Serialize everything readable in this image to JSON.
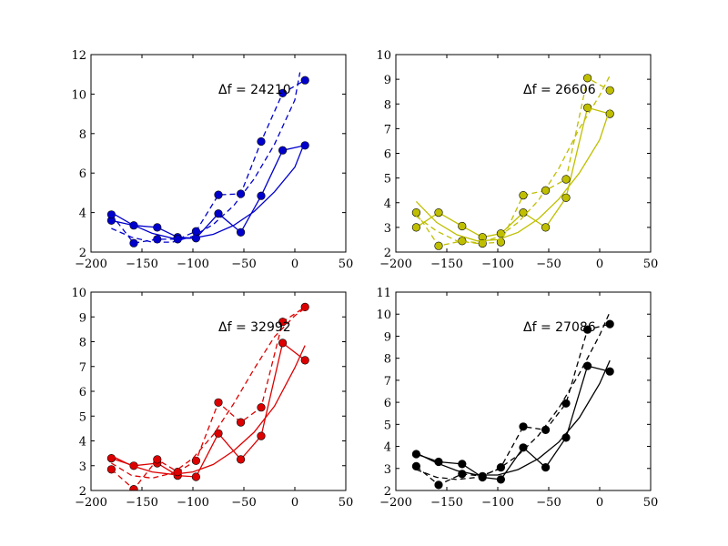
{
  "chart_data": [
    {
      "type": "line",
      "color": "#0000cc",
      "annotation": "Δf = 24210",
      "xlim": [
        -200,
        50
      ],
      "ylim": [
        2,
        12
      ],
      "xticks": [
        -200,
        -150,
        -100,
        -50,
        0,
        50
      ],
      "yticks": [
        2,
        4,
        6,
        8,
        10,
        12
      ],
      "series": [
        {
          "style": "solid-markers",
          "x": [
            -180,
            -158,
            -135,
            -115,
            -97,
            -75,
            -53,
            -33,
            -12,
            10
          ],
          "y": [
            3.6,
            3.35,
            3.25,
            2.75,
            2.7,
            3.95,
            3.0,
            4.85,
            7.15,
            7.4
          ]
        },
        {
          "style": "dashed-markers",
          "x": [
            -180,
            -158,
            -135,
            -115,
            -97,
            -75,
            -53,
            -33,
            -12,
            10
          ],
          "y": [
            3.9,
            2.45,
            2.65,
            2.65,
            3.05,
            4.9,
            4.95,
            7.6,
            10.05,
            10.7
          ]
        },
        {
          "style": "solid",
          "x": [
            -180,
            -160,
            -140,
            -120,
            -100,
            -80,
            -60,
            -40,
            -20,
            0,
            10
          ],
          "y": [
            4.0,
            3.4,
            2.95,
            2.7,
            2.7,
            2.9,
            3.35,
            4.05,
            5.05,
            6.3,
            7.6
          ]
        },
        {
          "style": "dashed",
          "x": [
            -180,
            -160,
            -140,
            -120,
            -100,
            -80,
            -60,
            -40,
            -20,
            0,
            5
          ],
          "y": [
            3.2,
            2.75,
            2.5,
            2.5,
            2.8,
            3.4,
            4.35,
            5.7,
            7.45,
            9.7,
            11.1
          ]
        }
      ]
    },
    {
      "type": "line",
      "color": "#bfbf00",
      "annotation": "Δf = 26606",
      "xlim": [
        -200,
        50
      ],
      "ylim": [
        2,
        10
      ],
      "xticks": [
        -200,
        -150,
        -100,
        -50,
        0,
        50
      ],
      "yticks": [
        2,
        3,
        4,
        5,
        6,
        7,
        8,
        9,
        10
      ],
      "series": [
        {
          "style": "solid-markers",
          "x": [
            -180,
            -158,
            -135,
            -115,
            -97,
            -75,
            -53,
            -33,
            -12,
            10
          ],
          "y": [
            3.0,
            3.6,
            3.05,
            2.6,
            2.75,
            3.6,
            3.0,
            4.2,
            7.85,
            7.6
          ]
        },
        {
          "style": "dashed-markers",
          "x": [
            -180,
            -158,
            -135,
            -115,
            -97,
            -75,
            -53,
            -33,
            -12,
            10
          ],
          "y": [
            3.6,
            2.25,
            2.45,
            2.35,
            2.4,
            4.3,
            4.5,
            4.95,
            9.05,
            8.55
          ]
        },
        {
          "style": "solid",
          "x": [
            -180,
            -160,
            -140,
            -120,
            -100,
            -80,
            -60,
            -40,
            -20,
            0,
            10
          ],
          "y": [
            4.05,
            3.2,
            2.7,
            2.45,
            2.5,
            2.8,
            3.35,
            4.15,
            5.2,
            6.55,
            7.8
          ]
        },
        {
          "style": "dashed",
          "x": [
            -180,
            -160,
            -140,
            -120,
            -100,
            -80,
            -60,
            -40,
            -20,
            0,
            10
          ],
          "y": [
            3.45,
            2.85,
            2.45,
            2.35,
            2.6,
            3.2,
            4.1,
            5.4,
            7.0,
            8.35,
            9.15
          ]
        }
      ]
    },
    {
      "type": "line",
      "color": "#dd0000",
      "annotation": "Δf = 32992",
      "xlim": [
        -200,
        50
      ],
      "ylim": [
        2,
        10
      ],
      "xticks": [
        -200,
        -150,
        -100,
        -50,
        0,
        50
      ],
      "yticks": [
        2,
        3,
        4,
        5,
        6,
        7,
        8,
        9,
        10
      ],
      "series": [
        {
          "style": "solid-markers",
          "x": [
            -180,
            -158,
            -135,
            -115,
            -97,
            -75,
            -53,
            -33,
            -12,
            10
          ],
          "y": [
            3.3,
            3.0,
            3.1,
            2.6,
            2.55,
            4.3,
            3.25,
            4.2,
            7.95,
            7.25
          ]
        },
        {
          "style": "dashed-markers",
          "x": [
            -180,
            -158,
            -135,
            -115,
            -97,
            -75,
            -53,
            -33,
            -12,
            10
          ],
          "y": [
            2.85,
            2.05,
            3.25,
            2.75,
            3.2,
            5.55,
            4.75,
            5.35,
            8.8,
            9.4
          ]
        },
        {
          "style": "solid",
          "x": [
            -180,
            -160,
            -140,
            -120,
            -100,
            -80,
            -60,
            -40,
            -20,
            0,
            10
          ],
          "y": [
            3.4,
            3.0,
            2.75,
            2.65,
            2.75,
            3.05,
            3.6,
            4.35,
            5.4,
            6.95,
            7.85
          ]
        },
        {
          "style": "dashed",
          "x": [
            -180,
            -160,
            -140,
            -120,
            -100,
            -80,
            -60,
            -40,
            -20,
            0,
            10
          ],
          "y": [
            3.1,
            2.6,
            2.5,
            2.7,
            3.3,
            4.25,
            5.5,
            6.9,
            8.2,
            9.05,
            9.35
          ]
        }
      ]
    },
    {
      "type": "line",
      "color": "#000000",
      "annotation": "Δf = 27086",
      "xlim": [
        -200,
        50
      ],
      "ylim": [
        2,
        11
      ],
      "xticks": [
        -200,
        -150,
        -100,
        -50,
        0,
        50
      ],
      "yticks": [
        2,
        3,
        4,
        5,
        6,
        7,
        8,
        9,
        10,
        11
      ],
      "series": [
        {
          "style": "solid-markers",
          "x": [
            -180,
            -158,
            -135,
            -115,
            -97,
            -75,
            -53,
            -33,
            -12,
            10
          ],
          "y": [
            3.65,
            3.3,
            3.2,
            2.6,
            2.5,
            3.95,
            3.05,
            4.4,
            7.65,
            7.4
          ]
        },
        {
          "style": "dashed-markers",
          "x": [
            -180,
            -158,
            -135,
            -115,
            -97,
            -75,
            -53,
            -33,
            -12,
            10
          ],
          "y": [
            3.1,
            2.25,
            2.75,
            2.65,
            3.05,
            4.9,
            4.75,
            5.95,
            9.3,
            9.55
          ]
        },
        {
          "style": "solid",
          "x": [
            -180,
            -160,
            -140,
            -120,
            -100,
            -80,
            -60,
            -40,
            -20,
            0,
            10
          ],
          "y": [
            3.7,
            3.25,
            2.9,
            2.7,
            2.7,
            2.95,
            3.45,
            4.2,
            5.3,
            6.85,
            7.9
          ]
        },
        {
          "style": "dashed",
          "x": [
            -180,
            -160,
            -140,
            -120,
            -100,
            -80,
            -60,
            -40,
            -20,
            0,
            10
          ],
          "y": [
            2.95,
            2.6,
            2.5,
            2.6,
            2.95,
            3.6,
            4.5,
            5.75,
            7.3,
            9.05,
            10.1
          ]
        }
      ]
    }
  ]
}
